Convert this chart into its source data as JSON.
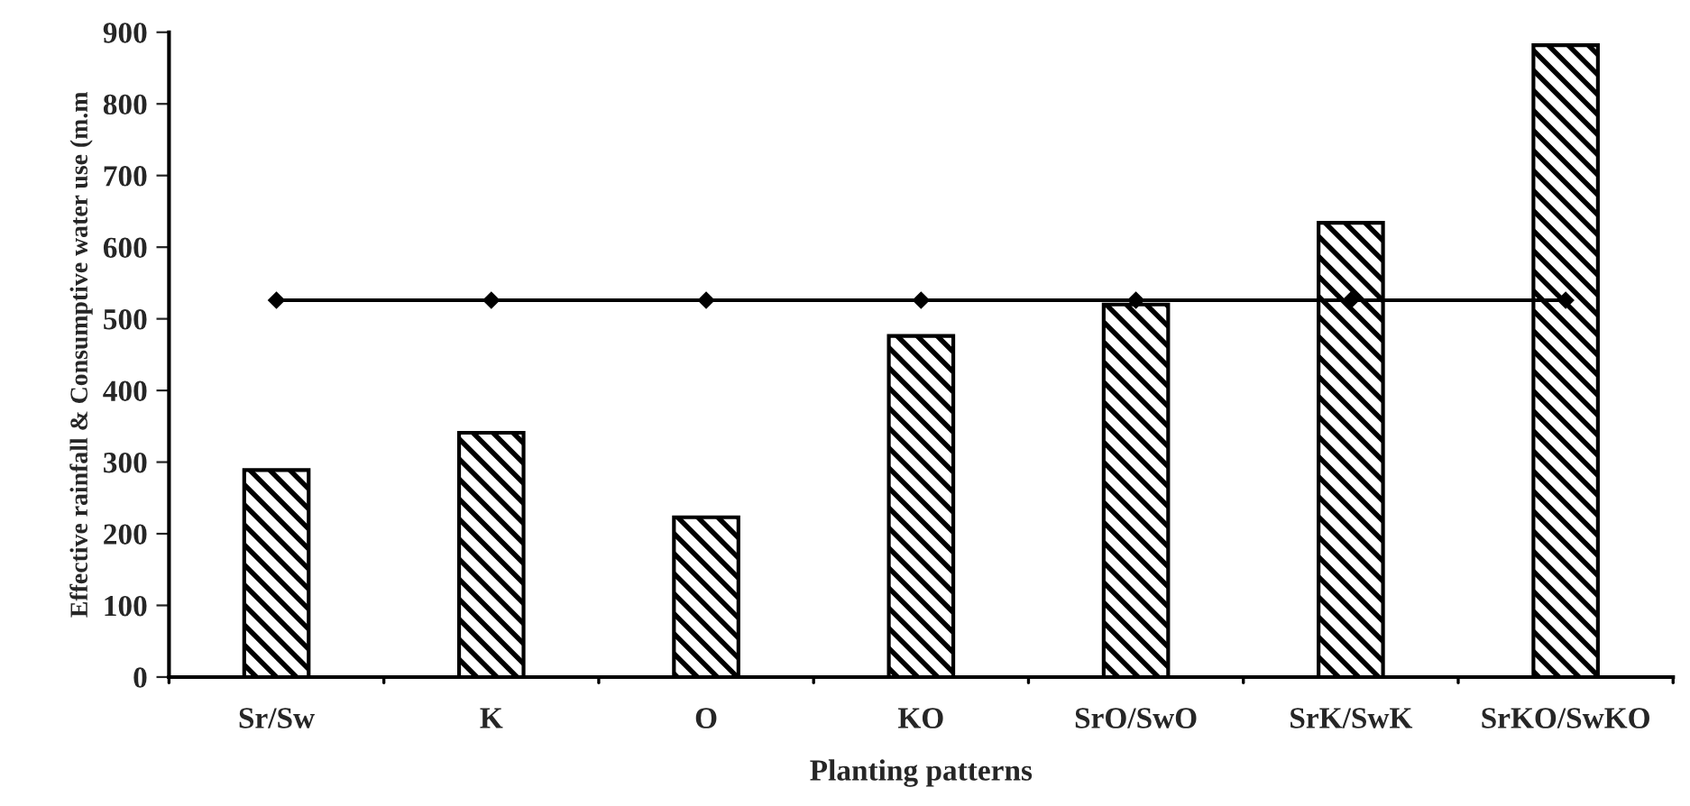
{
  "chart_data": {
    "type": "bar",
    "xlabel": "Planting patterns",
    "ylabel": "Effective rainfall & Consumptive water use (m.m",
    "categories": [
      "Sr/Sw",
      "K",
      "O",
      "KO",
      "SrO/SwO",
      "SrK/SwK",
      "SrKO/SwKO"
    ],
    "series": [
      {
        "color": "#000000",
        "values": [
          289,
          341,
          223,
          476,
          520,
          634,
          882
        ]
      },
      {
        "type": "line",
        "color": "#000000",
        "values": [
          526,
          526,
          526,
          526,
          526,
          526,
          526
        ],
        "marker": "diamond",
        "line_style": "solid"
      }
    ],
    "ylim": [
      0,
      900
    ],
    "yticks": [
      0,
      100,
      200,
      300,
      400,
      500,
      600,
      700,
      800,
      900
    ],
    "grid": false,
    "legend": false
  }
}
